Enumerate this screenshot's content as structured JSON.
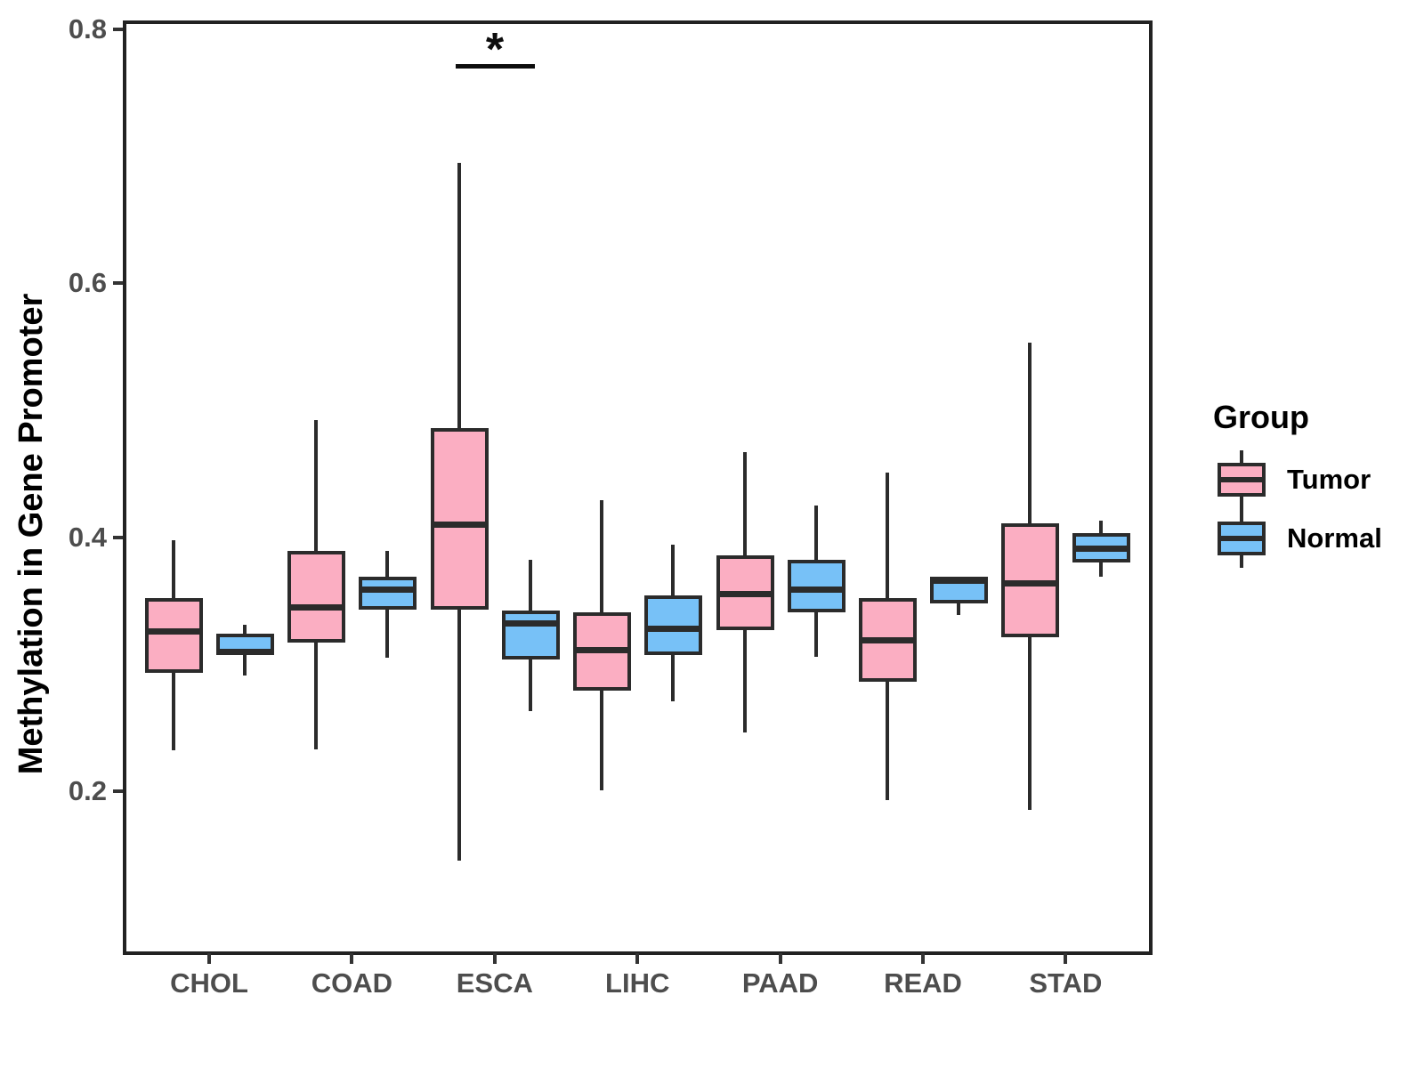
{
  "chart_data": {
    "type": "boxplot",
    "title": "",
    "xlabel": "",
    "ylabel": "Methylation in Gene Promoter",
    "categories": [
      "CHOL",
      "COAD",
      "ESCA",
      "LIHC",
      "PAAD",
      "READ",
      "STAD"
    ],
    "yticks": [
      0.2,
      0.4,
      0.6,
      0.8
    ],
    "ylim": [
      0.07,
      0.81
    ],
    "grid": false,
    "legend": {
      "title": "Group",
      "position": "right",
      "entries": [
        {
          "label": "Tumor",
          "color": "#fbaec2"
        },
        {
          "label": "Normal",
          "color": "#77c1f7"
        }
      ]
    },
    "series": [
      {
        "name": "Tumor",
        "color": "#fbaec2",
        "boxes": [
          {
            "category": "CHOL",
            "min": 0.232,
            "q1": 0.293,
            "median": 0.326,
            "q3": 0.352,
            "max": 0.398
          },
          {
            "category": "COAD",
            "min": 0.233,
            "q1": 0.317,
            "median": 0.345,
            "q3": 0.389,
            "max": 0.492
          },
          {
            "category": "ESCA",
            "min": 0.145,
            "q1": 0.343,
            "median": 0.41,
            "q3": 0.486,
            "max": 0.695
          },
          {
            "category": "LIHC",
            "min": 0.201,
            "q1": 0.279,
            "median": 0.311,
            "q3": 0.341,
            "max": 0.429
          },
          {
            "category": "PAAD",
            "min": 0.246,
            "q1": 0.327,
            "median": 0.355,
            "q3": 0.386,
            "max": 0.467
          },
          {
            "category": "READ",
            "min": 0.193,
            "q1": 0.286,
            "median": 0.319,
            "q3": 0.352,
            "max": 0.451
          },
          {
            "category": "STAD",
            "min": 0.185,
            "q1": 0.321,
            "median": 0.364,
            "q3": 0.411,
            "max": 0.553
          }
        ]
      },
      {
        "name": "Normal",
        "color": "#77c1f7",
        "boxes": [
          {
            "category": "CHOL",
            "min": 0.291,
            "q1": 0.307,
            "median": 0.31,
            "q3": 0.324,
            "max": 0.331
          },
          {
            "category": "COAD",
            "min": 0.305,
            "q1": 0.343,
            "median": 0.359,
            "q3": 0.369,
            "max": 0.389
          },
          {
            "category": "ESCA",
            "min": 0.263,
            "q1": 0.304,
            "median": 0.332,
            "q3": 0.342,
            "max": 0.382
          },
          {
            "category": "LIHC",
            "min": 0.271,
            "q1": 0.307,
            "median": 0.328,
            "q3": 0.354,
            "max": 0.394
          },
          {
            "category": "PAAD",
            "min": 0.306,
            "q1": 0.341,
            "median": 0.359,
            "q3": 0.382,
            "max": 0.425
          },
          {
            "category": "READ",
            "min": 0.339,
            "q1": 0.348,
            "median": 0.366,
            "q3": 0.369,
            "max": 0.369
          },
          {
            "category": "STAD",
            "min": 0.369,
            "q1": 0.38,
            "median": 0.391,
            "q3": 0.403,
            "max": 0.413
          }
        ]
      }
    ],
    "annotations": [
      {
        "type": "significance-bracket",
        "label": "*",
        "category": "ESCA",
        "between": [
          "Tumor",
          "Normal"
        ],
        "bar_y": 0.771
      }
    ]
  },
  "styles": {
    "box_border_color": "#2b2b2b",
    "panel_border_color": "#222222",
    "tick_color": "#333333",
    "tick_label_color": "#4d4d4d",
    "axis_title_color": "#000000",
    "significance_color": "#0d0d0d",
    "background": "#ffffff"
  }
}
